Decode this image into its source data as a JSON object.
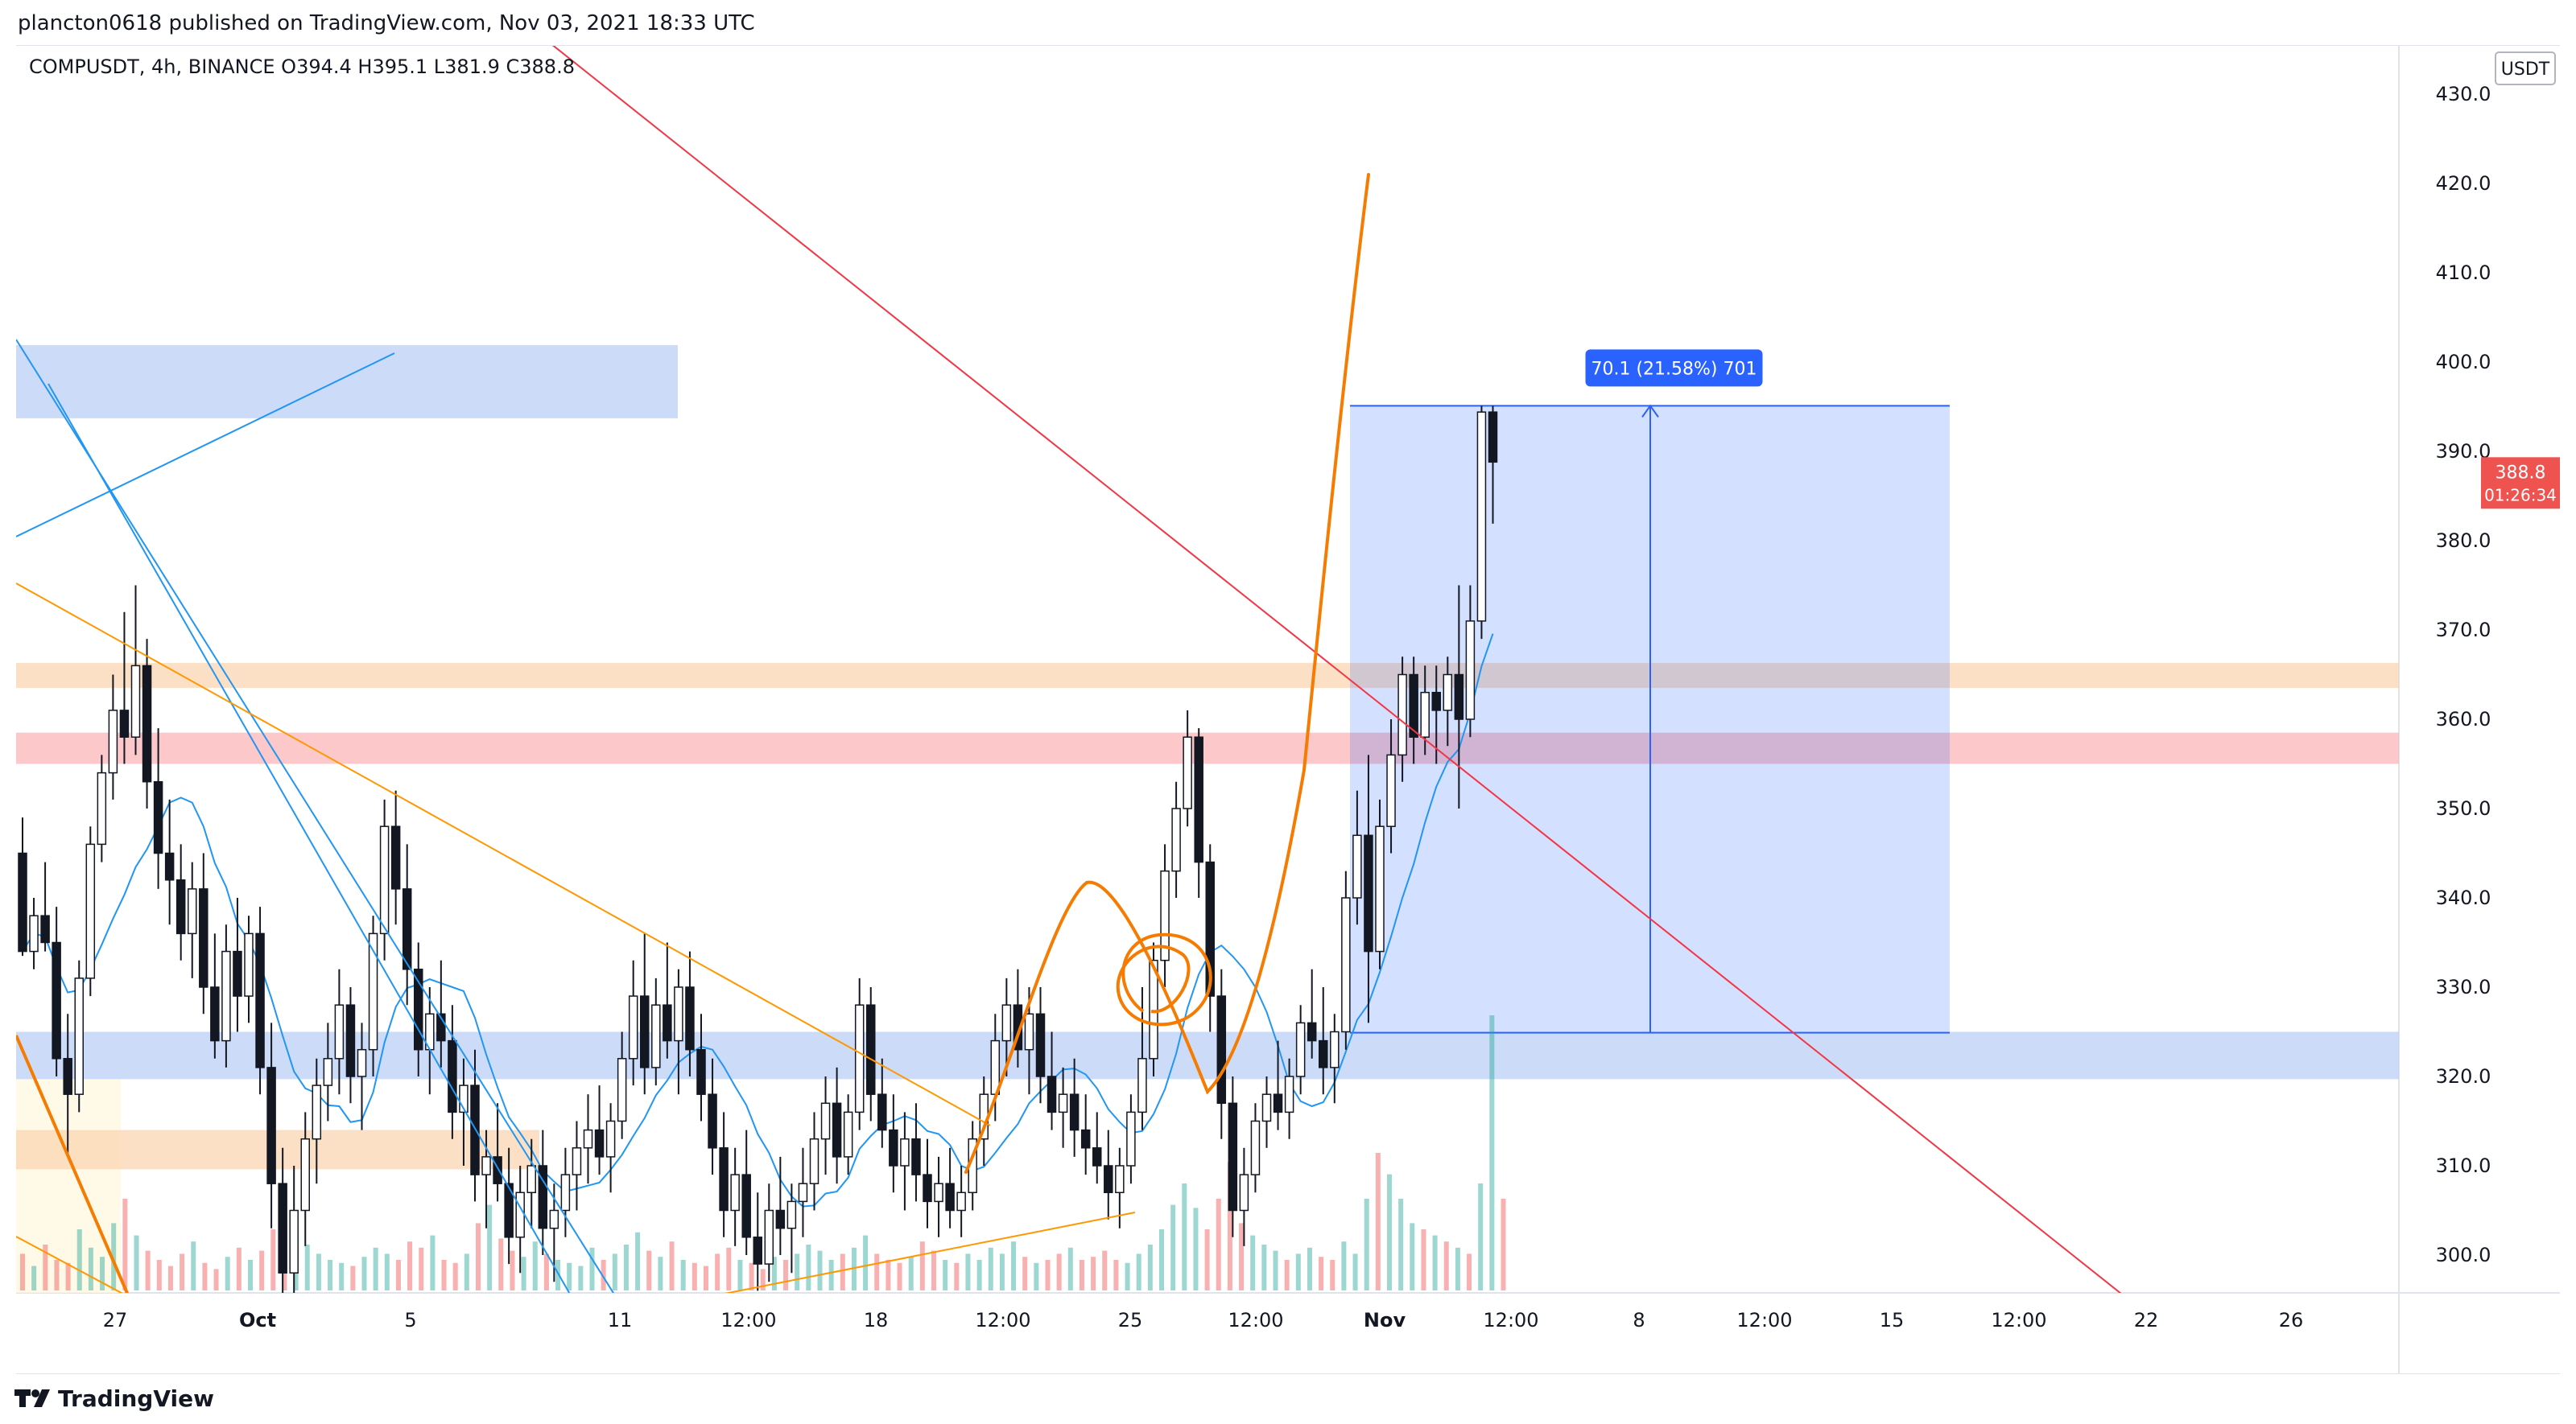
{
  "header": {
    "published_text": "plancton0618 published on TradingView.com, Nov 03, 2021 18:33 UTC"
  },
  "footer": {
    "brand": "TradingView",
    "logo_icon": "tradingview-logo-icon"
  },
  "chart_data": {
    "type": "candlestick",
    "legend": "COMPUSDT, 4h, BINANCE  O394.4  H395.1  L381.9  C388.8",
    "symbol": "COMPUSDT",
    "interval": "4h",
    "exchange": "BINANCE",
    "ohlc": {
      "open": 394.4,
      "high": 395.1,
      "low": 381.9,
      "close": 388.8
    },
    "currency": "USDT",
    "last_price": "388.8",
    "countdown": "01:26:34",
    "y_ticks": [
      "300.0",
      "310.0",
      "320.0",
      "330.0",
      "340.0",
      "350.0",
      "360.0",
      "370.0",
      "380.0",
      "390.0",
      "400.0",
      "410.0",
      "420.0",
      "430.0"
    ],
    "ylim": [
      294,
      431
    ],
    "x_ticks": [
      "27",
      "Oct",
      "5",
      "11",
      "12:00",
      "18",
      "12:00",
      "25",
      "12:00",
      "Nov",
      "12:00",
      "8",
      "12:00",
      "15",
      "12:00",
      "22",
      "26"
    ],
    "measure_label": "70.1 (21.58%) 701",
    "measure_range": [
      324.9,
      395.1
    ],
    "zones": [
      {
        "name": "supply-zone-upper-left",
        "low": 393.7,
        "high": 401.9,
        "color": "#bbd0f6"
      },
      {
        "name": "orange-resistance-zone",
        "low": 363.5,
        "high": 366.3,
        "color": "#fbd6b1"
      },
      {
        "name": "red-resistance-zone",
        "low": 355.0,
        "high": 358.5,
        "color": "#fbb6b8"
      },
      {
        "name": "blue-demand-zone",
        "low": 319.7,
        "high": 325.0,
        "color": "#bbd0f6"
      },
      {
        "name": "orange-support-zone",
        "low": 309.6,
        "high": 314.0,
        "color": "#fbd6b1"
      }
    ],
    "colors": {
      "up": "#26a69a",
      "down": "#ef5350",
      "ma": "#2196f3",
      "trendline_red": "#f23645",
      "trendline_blue": "#2196f3",
      "trendline_orange": "#ff9800",
      "drawing_orange": "#f57c00",
      "measure_fill": "#2962ff",
      "price_label": "#ef5350"
    },
    "candles": [
      [
        345.0,
        349.0,
        333.5,
        334.0
      ],
      [
        334.0,
        340.0,
        332.0,
        338.0
      ],
      [
        338.0,
        344.0,
        334.0,
        335.0
      ],
      [
        335.0,
        339.0,
        320.0,
        322.0
      ],
      [
        322.0,
        327.0,
        311.0,
        318.0
      ],
      [
        318.0,
        333.0,
        316.0,
        331.0
      ],
      [
        331.0,
        348.0,
        329.0,
        346.0
      ],
      [
        346.0,
        356.0,
        344.0,
        354.0
      ],
      [
        354.0,
        365.0,
        351.0,
        361.0
      ],
      [
        361.0,
        372.0,
        355.0,
        358.0
      ],
      [
        358.0,
        375.0,
        356.0,
        366.0
      ],
      [
        366.0,
        369.0,
        350.0,
        353.0
      ],
      [
        353.0,
        359.0,
        341.0,
        345.0
      ],
      [
        345.0,
        351.0,
        337.0,
        342.0
      ],
      [
        342.0,
        346.0,
        333.0,
        336.0
      ],
      [
        336.0,
        344.0,
        331.0,
        341.0
      ],
      [
        341.0,
        345.0,
        327.0,
        330.0
      ],
      [
        330.0,
        336.0,
        322.0,
        324.0
      ],
      [
        324.0,
        337.0,
        321.0,
        334.0
      ],
      [
        334.0,
        340.0,
        325.0,
        329.0
      ],
      [
        329.0,
        338.0,
        326.0,
        336.0
      ],
      [
        336.0,
        339.0,
        318.0,
        321.0
      ],
      [
        321.0,
        326.0,
        303.0,
        308.0
      ],
      [
        308.0,
        312.0,
        294.0,
        298.0
      ],
      [
        298.0,
        310.0,
        295.0,
        305.0
      ],
      [
        305.0,
        316.0,
        301.0,
        313.0
      ],
      [
        313.0,
        322.0,
        308.0,
        319.0
      ],
      [
        319.0,
        326.0,
        315.0,
        322.0
      ],
      [
        322.0,
        332.0,
        318.0,
        328.0
      ],
      [
        328.0,
        330.0,
        317.0,
        320.0
      ],
      [
        320.0,
        326.0,
        314.0,
        323.0
      ],
      [
        323.0,
        338.0,
        320.0,
        336.0
      ],
      [
        336.0,
        351.0,
        333.0,
        348.0
      ],
      [
        348.0,
        352.0,
        337.0,
        341.0
      ],
      [
        341.0,
        346.0,
        328.0,
        332.0
      ],
      [
        332.0,
        335.0,
        320.0,
        323.0
      ],
      [
        323.0,
        330.0,
        318.0,
        327.0
      ],
      [
        327.0,
        333.0,
        321.0,
        324.0
      ],
      [
        324.0,
        328.0,
        313.0,
        316.0
      ],
      [
        316.0,
        322.0,
        310.0,
        319.0
      ],
      [
        319.0,
        323.0,
        306.0,
        309.0
      ],
      [
        309.0,
        314.0,
        303.0,
        311.0
      ],
      [
        311.0,
        317.0,
        306.0,
        308.0
      ],
      [
        308.0,
        312.0,
        299.0,
        302.0
      ],
      [
        302.0,
        310.0,
        298.0,
        307.0
      ],
      [
        307.0,
        313.0,
        303.0,
        310.0
      ],
      [
        310.0,
        314.0,
        300.0,
        303.0
      ],
      [
        303.0,
        308.0,
        297.0,
        305.0
      ],
      [
        305.0,
        312.0,
        302.0,
        309.0
      ],
      [
        309.0,
        315.0,
        305.0,
        312.0
      ],
      [
        312.0,
        318.0,
        308.0,
        314.0
      ],
      [
        314.0,
        319.0,
        309.0,
        311.0
      ],
      [
        311.0,
        317.0,
        307.0,
        315.0
      ],
      [
        315.0,
        325.0,
        313.0,
        322.0
      ],
      [
        322.0,
        333.0,
        319.0,
        329.0
      ],
      [
        329.0,
        336.0,
        318.0,
        321.0
      ],
      [
        321.0,
        331.0,
        319.0,
        328.0
      ],
      [
        328.0,
        335.0,
        322.0,
        324.0
      ],
      [
        324.0,
        332.0,
        318.0,
        330.0
      ],
      [
        330.0,
        334.0,
        320.0,
        323.0
      ],
      [
        323.0,
        327.0,
        315.0,
        318.0
      ],
      [
        318.0,
        322.0,
        309.0,
        312.0
      ],
      [
        312.0,
        316.0,
        302.0,
        305.0
      ],
      [
        305.0,
        312.0,
        301.0,
        309.0
      ],
      [
        309.0,
        314.0,
        300.0,
        302.0
      ],
      [
        302.0,
        307.0,
        296.0,
        299.0
      ],
      [
        299.0,
        308.0,
        297.0,
        305.0
      ],
      [
        305.0,
        311.0,
        300.0,
        303.0
      ],
      [
        303.0,
        308.0,
        298.0,
        306.0
      ],
      [
        306.0,
        312.0,
        302.0,
        308.0
      ],
      [
        308.0,
        316.0,
        305.0,
        313.0
      ],
      [
        313.0,
        320.0,
        309.0,
        317.0
      ],
      [
        317.0,
        321.0,
        308.0,
        311.0
      ],
      [
        311.0,
        318.0,
        309.0,
        316.0
      ],
      [
        316.0,
        331.0,
        314.0,
        328.0
      ],
      [
        328.0,
        330.0,
        315.0,
        318.0
      ],
      [
        318.0,
        322.0,
        312.0,
        314.0
      ],
      [
        314.0,
        318.0,
        307.0,
        310.0
      ],
      [
        310.0,
        316.0,
        305.0,
        313.0
      ],
      [
        313.0,
        317.0,
        306.0,
        309.0
      ],
      [
        309.0,
        313.0,
        303.0,
        306.0
      ],
      [
        306.0,
        311.0,
        302.0,
        308.0
      ],
      [
        308.0,
        312.0,
        303.0,
        305.0
      ],
      [
        305.0,
        310.0,
        302.0,
        307.0
      ],
      [
        307.0,
        315.0,
        305.0,
        313.0
      ],
      [
        313.0,
        320.0,
        310.0,
        318.0
      ],
      [
        318.0,
        327.0,
        315.0,
        324.0
      ],
      [
        324.0,
        331.0,
        320.0,
        328.0
      ],
      [
        328.0,
        332.0,
        321.0,
        323.0
      ],
      [
        323.0,
        330.0,
        318.0,
        327.0
      ],
      [
        327.0,
        330.0,
        317.0,
        320.0
      ],
      [
        320.0,
        325.0,
        314.0,
        316.0
      ],
      [
        316.0,
        321.0,
        312.0,
        318.0
      ],
      [
        318.0,
        322.0,
        311.0,
        314.0
      ],
      [
        314.0,
        318.0,
        309.0,
        312.0
      ],
      [
        312.0,
        316.0,
        308.0,
        310.0
      ],
      [
        310.0,
        314.0,
        304.0,
        307.0
      ],
      [
        307.0,
        312.0,
        303.0,
        310.0
      ],
      [
        310.0,
        318.0,
        308.0,
        316.0
      ],
      [
        316.0,
        330.0,
        314.0,
        322.0
      ],
      [
        322.0,
        335.0,
        320.0,
        333.0
      ],
      [
        333.0,
        346.0,
        330.0,
        343.0
      ],
      [
        343.0,
        353.0,
        340.0,
        350.0
      ],
      [
        350.0,
        361.0,
        348.0,
        358.0
      ],
      [
        358.0,
        359.0,
        340.0,
        344.0
      ],
      [
        344.0,
        346.0,
        325.0,
        329.0
      ],
      [
        329.0,
        332.0,
        313.0,
        317.0
      ],
      [
        317.0,
        320.0,
        302.0,
        305.0
      ],
      [
        305.0,
        312.0,
        301.0,
        309.0
      ],
      [
        309.0,
        317.0,
        307.0,
        315.0
      ],
      [
        315.0,
        320.0,
        312.0,
        318.0
      ],
      [
        318.0,
        324.0,
        314.0,
        316.0
      ],
      [
        316.0,
        322.0,
        313.0,
        320.0
      ],
      [
        320.0,
        328.0,
        318.0,
        326.0
      ],
      [
        326.0,
        332.0,
        322.0,
        324.0
      ],
      [
        324.0,
        330.0,
        318.0,
        321.0
      ],
      [
        321.0,
        327.0,
        317.0,
        325.0
      ],
      [
        325.0,
        343.0,
        323.0,
        340.0
      ],
      [
        340.0,
        352.0,
        337.0,
        347.0
      ],
      [
        347.0,
        356.0,
        326.0,
        334.0
      ],
      [
        334.0,
        351.0,
        332.0,
        348.0
      ],
      [
        348.0,
        360.0,
        345.0,
        356.0
      ],
      [
        356.0,
        367.0,
        353.0,
        365.0
      ],
      [
        365.0,
        367.0,
        355.0,
        358.0
      ],
      [
        358.0,
        366.0,
        356.0,
        363.0
      ],
      [
        363.0,
        366.0,
        355.0,
        361.0
      ],
      [
        361.0,
        367.0,
        357.0,
        365.0
      ],
      [
        365.0,
        375.0,
        350.0,
        360.0
      ],
      [
        360.0,
        375.0,
        358.0,
        371.0
      ],
      [
        371.0,
        395.1,
        369.0,
        394.4
      ],
      [
        394.4,
        395.1,
        381.9,
        388.8
      ]
    ],
    "volumes": [
      0.12,
      0.08,
      0.15,
      0.1,
      0.09,
      0.2,
      0.14,
      0.11,
      0.22,
      0.3,
      0.18,
      0.13,
      0.1,
      0.08,
      0.12,
      0.16,
      0.09,
      0.07,
      0.11,
      0.14,
      0.1,
      0.13,
      0.2,
      0.35,
      0.25,
      0.15,
      0.12,
      0.1,
      0.09,
      0.08,
      0.11,
      0.14,
      0.12,
      0.1,
      0.16,
      0.14,
      0.18,
      0.1,
      0.09,
      0.12,
      0.22,
      0.28,
      0.17,
      0.13,
      0.11,
      0.16,
      0.12,
      0.1,
      0.09,
      0.08,
      0.14,
      0.1,
      0.12,
      0.15,
      0.19,
      0.13,
      0.11,
      0.16,
      0.1,
      0.09,
      0.08,
      0.12,
      0.14,
      0.1,
      0.09,
      0.07,
      0.11,
      0.1,
      0.12,
      0.15,
      0.13,
      0.1,
      0.12,
      0.14,
      0.18,
      0.12,
      0.1,
      0.09,
      0.11,
      0.16,
      0.13,
      0.1,
      0.09,
      0.12,
      0.1,
      0.14,
      0.12,
      0.16,
      0.11,
      0.09,
      0.1,
      0.12,
      0.14,
      0.1,
      0.11,
      0.13,
      0.1,
      0.09,
      0.12,
      0.15,
      0.2,
      0.28,
      0.35,
      0.27,
      0.2,
      0.3,
      0.42,
      0.22,
      0.18,
      0.15,
      0.13,
      0.1,
      0.12,
      0.14,
      0.11,
      0.1,
      0.16,
      0.12,
      0.3,
      0.45,
      0.38,
      0.3,
      0.22,
      0.2,
      0.18,
      0.16,
      0.14,
      0.12,
      0.35,
      0.9,
      0.3
    ]
  }
}
